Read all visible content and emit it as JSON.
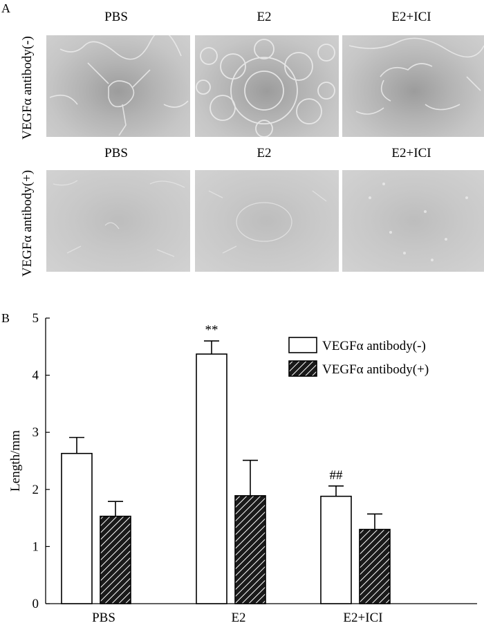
{
  "panel_a": {
    "letter": "A",
    "columns": [
      "PBS",
      "E2",
      "E2+ICI"
    ],
    "rows": [
      {
        "label": "VEGFα antibody(-)",
        "column_headers": [
          "PBS",
          "E2",
          "E2+ICI"
        ]
      },
      {
        "label": "VEGFα antibody(+)",
        "column_headers": [
          "PBS",
          "E2",
          "E2+ICI"
        ]
      }
    ]
  },
  "panel_b": {
    "letter": "B"
  },
  "chart_data": {
    "type": "bar",
    "title": "",
    "xlabel": "",
    "ylabel": "Length/mm",
    "ylim": [
      0,
      5
    ],
    "yticks": [
      0,
      1,
      2,
      3,
      4,
      5
    ],
    "categories": [
      "PBS",
      "E2",
      "E2+ICI"
    ],
    "series": [
      {
        "name": "VEGFα antibody(-)",
        "values": [
          2.63,
          4.37,
          1.88
        ],
        "errors": [
          0.28,
          0.23,
          0.18
        ],
        "fill": "#ffffff",
        "pattern": "none"
      },
      {
        "name": "VEGFα antibody(+)",
        "values": [
          1.53,
          1.89,
          1.3
        ],
        "errors": [
          0.26,
          0.62,
          0.27
        ],
        "fill": "#222222",
        "pattern": "diagonal-hatch"
      }
    ],
    "annotations": [
      {
        "text": "**",
        "category": "E2",
        "series": 0
      },
      {
        "text": "##",
        "category": "E2+ICI",
        "series": 0
      }
    ],
    "legend_position": "top-right",
    "grid": false
  }
}
